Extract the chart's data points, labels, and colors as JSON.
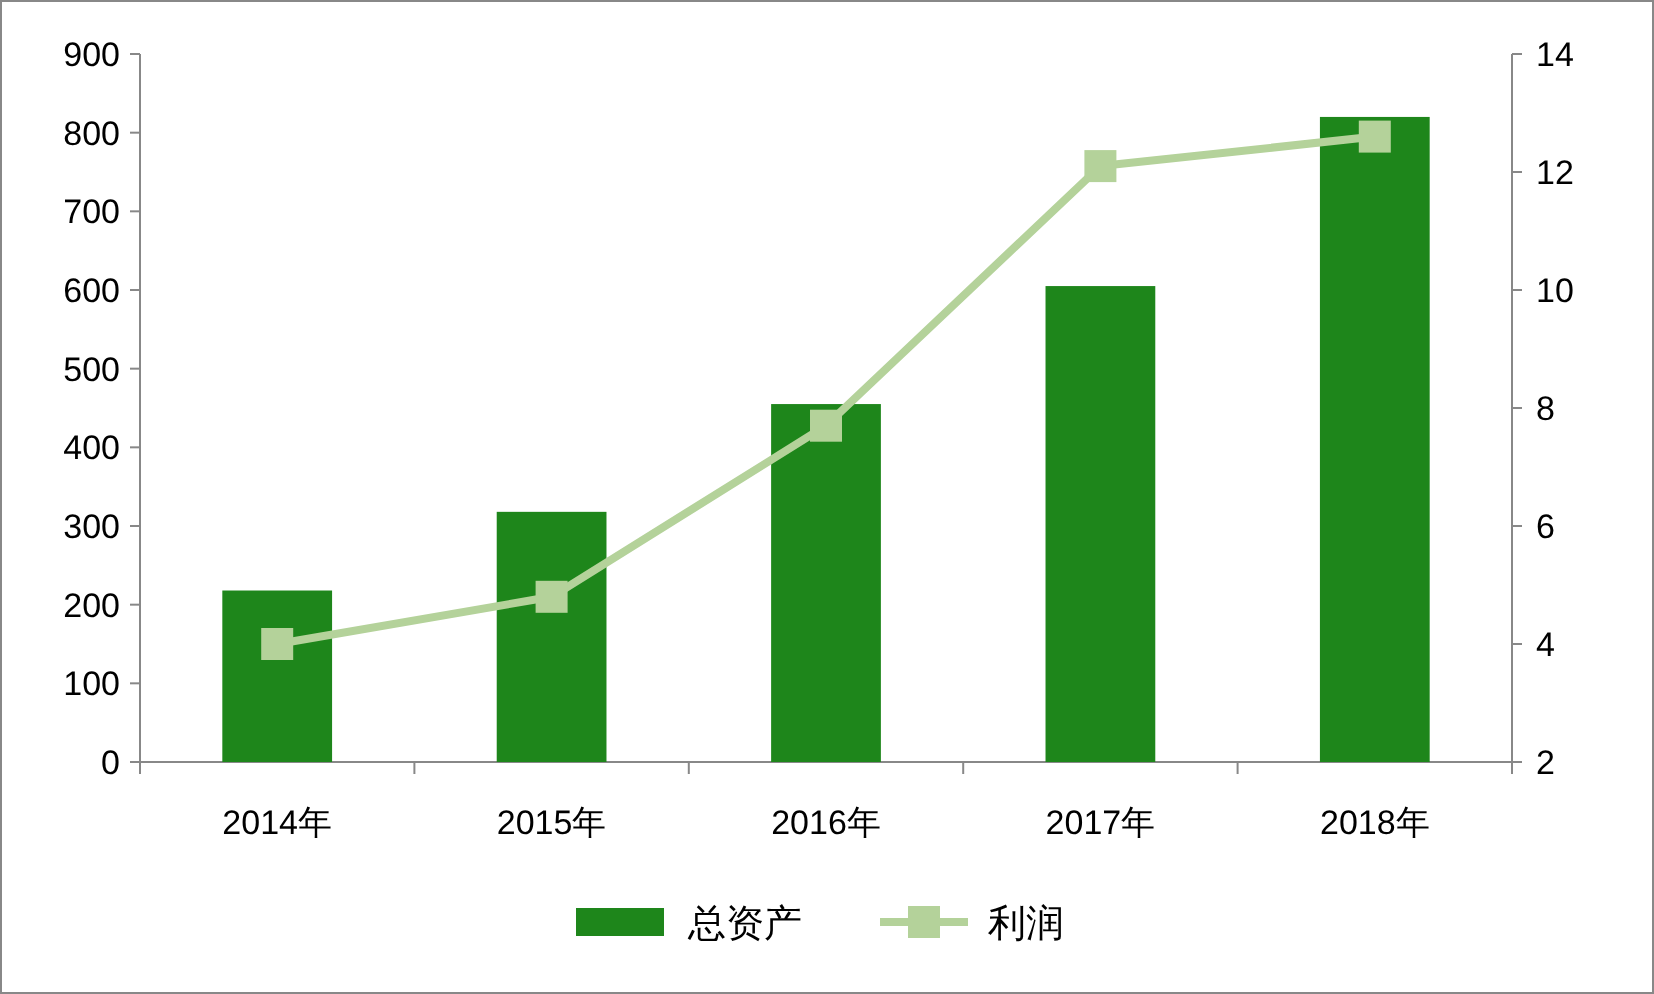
{
  "chart_data": {
    "type": "bar",
    "categories": [
      "2014年",
      "2015年",
      "2016年",
      "2017年",
      "2018年"
    ],
    "series": [
      {
        "name": "总资产",
        "color": "#1e861b",
        "values": [
          218,
          318,
          455,
          605,
          820
        ]
      },
      {
        "name": "利润",
        "type": "line",
        "axis": "y2",
        "color": "#b4d29a",
        "marker": "square",
        "values": [
          4.0,
          4.8,
          7.7,
          12.1,
          12.6
        ]
      }
    ],
    "ylim": [
      0,
      900
    ],
    "yticks": [
      0,
      100,
      200,
      300,
      400,
      500,
      600,
      700,
      800,
      900
    ],
    "y2lim": [
      2,
      14
    ],
    "y2ticks": [
      2,
      4,
      6,
      8,
      10,
      12,
      14
    ],
    "grid": false,
    "legend": "bottom"
  }
}
